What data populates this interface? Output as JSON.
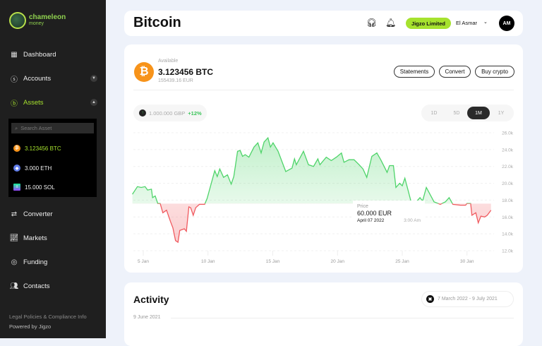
{
  "brand": {
    "name": "chameleon",
    "sub": "money"
  },
  "sidebar": {
    "items": [
      {
        "label": "Dashboard",
        "icon": "grid-icon"
      },
      {
        "label": "Accounts",
        "icon": "dollar-circle-icon"
      },
      {
        "label": "Assets",
        "icon": "bitcoin-circle-icon"
      },
      {
        "label": "Converter",
        "icon": "arrows-swap-icon"
      },
      {
        "label": "Markets",
        "icon": "chart-icon"
      },
      {
        "label": "Funding",
        "icon": "funding-icon"
      },
      {
        "label": "Contacts",
        "icon": "users-icon"
      }
    ],
    "asset_search_placeholder": "Search Asset",
    "assets": [
      {
        "label": "3.123456 BTC",
        "color": "#f7931a"
      },
      {
        "label": "3.000 ETH",
        "color": "#627eea"
      },
      {
        "label": "15.000 SOL",
        "color": "#9945ff"
      }
    ],
    "footer": {
      "legal": "Legal Policies & Compliance Info",
      "powered": "Powered by Jigzo"
    }
  },
  "header": {
    "title": "Bitcoin",
    "company": "Jigzo Limited",
    "user": "El Asmar",
    "avatar": "AM"
  },
  "asset": {
    "available_label": "Available",
    "amount": "3.123456 BTC",
    "fiat": "155439.16 EUR",
    "buttons": [
      "Statements",
      "Convert",
      "Buy crypto"
    ],
    "summary_value": "1.000.000 GBP",
    "summary_change": "+12%",
    "ranges": [
      "1D",
      "5D",
      "1M",
      "1Y"
    ],
    "selected_range": "1M"
  },
  "tooltip": {
    "label": "Price",
    "value": "60.000 EUR",
    "date": "April 07 2022",
    "time": "3:00 Am"
  },
  "chart_data": {
    "type": "area",
    "x_ticks": [
      "5 Jan",
      "10 Jan",
      "15 Jan",
      "20 Jan",
      "25 Jan",
      "30 Jan"
    ],
    "x_tick_days": [
      5,
      10,
      15,
      20,
      25,
      30
    ],
    "y_ticks": [
      "12.0k",
      "14.0k",
      "16.0k",
      "18.0k",
      "20.0k",
      "22.0k",
      "24.0k",
      "26.0k"
    ],
    "ylim": [
      12,
      26
    ],
    "baseline": 17.6,
    "colors": {
      "up": "#4fd46a",
      "down": "#f05a5f"
    },
    "x": [
      4.16,
      4.55,
      4.84,
      5.14,
      5.33,
      5.63,
      5.72,
      5.92,
      6.12,
      6.31,
      6.51,
      6.8,
      7.09,
      7.29,
      7.49,
      7.68,
      7.82,
      8.17,
      8.33,
      8.52,
      8.66,
      8.86,
      9.05,
      9.34,
      9.74,
      9.93,
      10.52,
      10.71,
      10.91,
      11.2,
      11.5,
      11.79,
      11.99,
      12.28,
      12.48,
      12.67,
      12.87,
      13.16,
      13.55,
      13.85,
      14.1,
      14.33,
      14.63,
      14.82,
      15.02,
      15.41,
      16.0,
      16.49,
      16.68,
      16.82,
      17.37,
      17.76,
      18.15,
      18.48,
      18.64,
      19.13,
      19.52,
      19.91,
      20.3,
      20.5,
      20.89,
      21.28,
      21.67,
      21.97,
      22.26,
      22.65,
      23.04,
      23.34,
      23.83,
      24.02,
      24.32,
      24.51,
      24.8,
      25.0,
      25.2,
      25.39,
      25.68,
      26.08,
      26.37,
      26.57,
      26.86,
      27.45,
      27.94,
      28.33,
      28.62,
      28.91,
      29.5,
      29.89,
      29.99,
      30.28,
      30.38,
      30.68,
      30.87,
      31.07,
      31.36,
      31.56,
      31.85
    ],
    "y": [
      18.7,
      19.6,
      19.5,
      19.6,
      19.2,
      19.3,
      18.3,
      18.5,
      17.6,
      17.6,
      16.5,
      16.8,
      15.5,
      14.7,
      13.2,
      13.0,
      14.4,
      14.6,
      14.3,
      17.2,
      17.1,
      16.2,
      17.1,
      17.5,
      17.5,
      18.2,
      21.5,
      20.8,
      21.7,
      20.7,
      21.0,
      19.9,
      20.8,
      23.8,
      23.9,
      23.2,
      23.4,
      23.1,
      24.3,
      24.8,
      23.6,
      24.9,
      25.4,
      24.3,
      24.8,
      23.8,
      21.4,
      21.8,
      22.9,
      22.2,
      23.8,
      22.2,
      22.0,
      22.9,
      22.2,
      23.1,
      22.7,
      23.1,
      23.6,
      22.5,
      22.8,
      22.8,
      22.2,
      21.7,
      20.7,
      23.2,
      23.6,
      22.8,
      21.3,
      22.1,
      22.1,
      19.5,
      20.0,
      19.7,
      20.6,
      19.5,
      17.8,
      17.8,
      18.3,
      17.9,
      19.5,
      17.8,
      17.5,
      17.8,
      18.3,
      17.5,
      17.4,
      17.4,
      17.6,
      17.6,
      16.2,
      16.5,
      15.3,
      16.1,
      16.0,
      16.2,
      16.8
    ]
  },
  "activity": {
    "title": "Activity",
    "date_range": "7 March 2022 - 9 July 2021",
    "group_date": "9 June 2021"
  }
}
